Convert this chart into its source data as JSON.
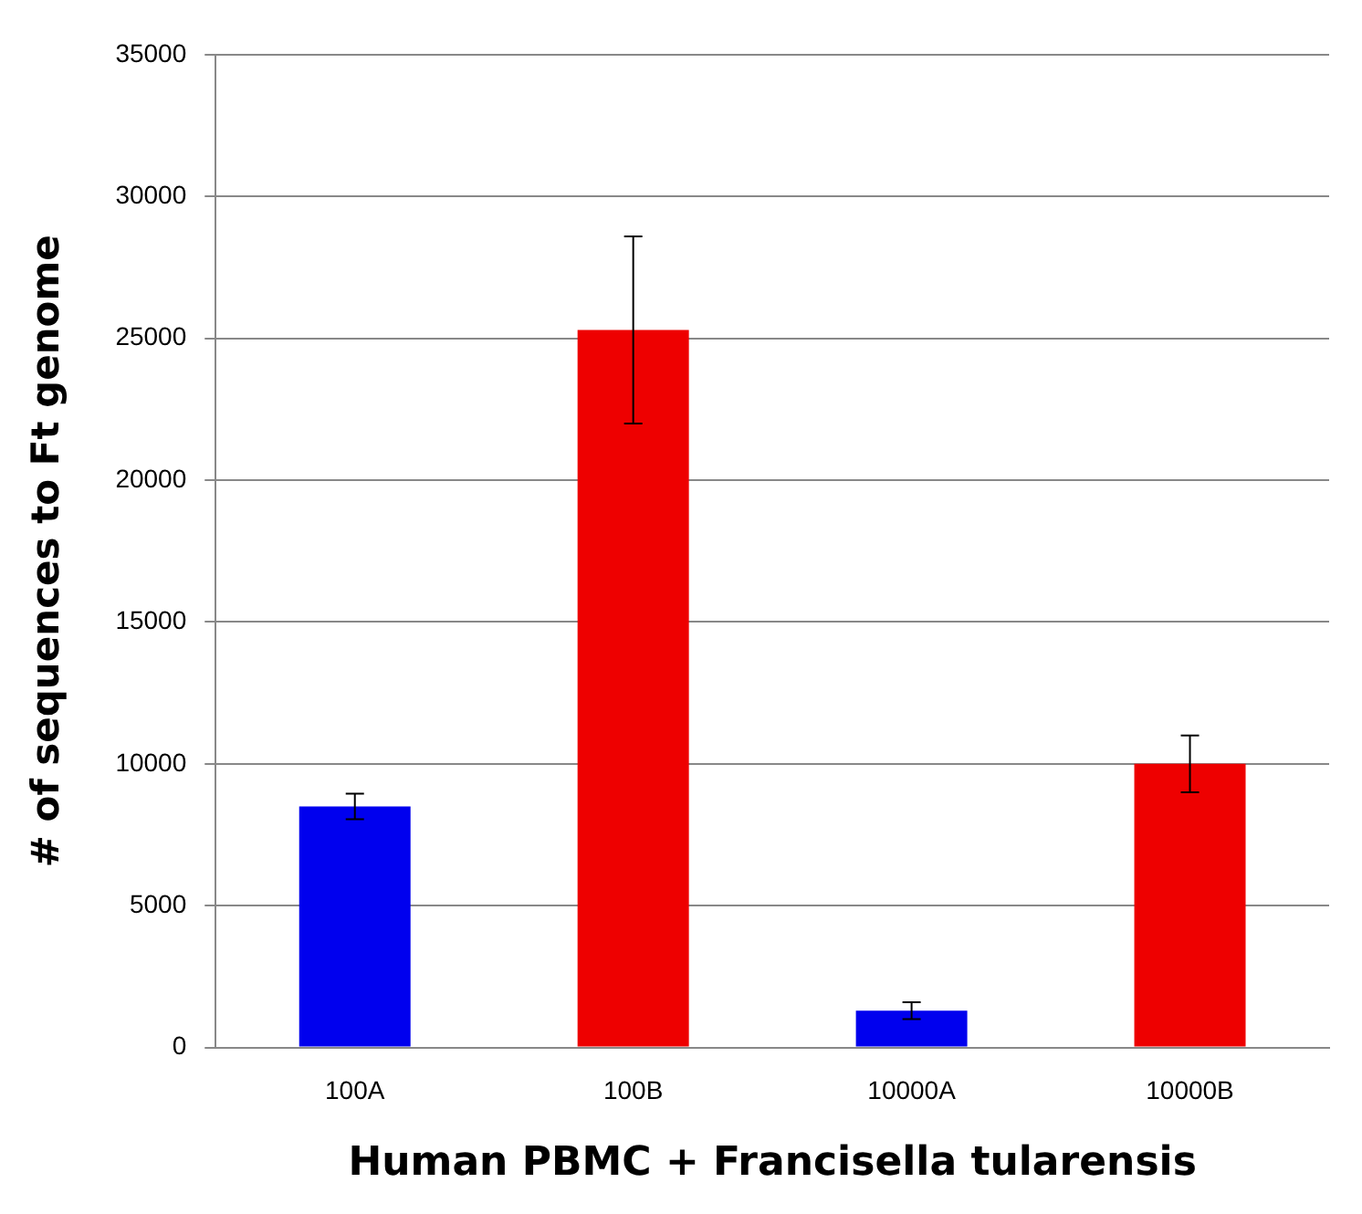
{
  "chart_data": {
    "type": "bar",
    "xlabel": "Human PBMC + Francisella tularensis",
    "ylabel": "# of sequences to Ft genome",
    "categories": [
      "100A",
      "100B",
      "10000A",
      "10000B"
    ],
    "values": [
      8500,
      25300,
      1300,
      10000
    ],
    "errors": [
      450,
      3300,
      300,
      1000
    ],
    "colors": [
      "#0000ee",
      "#ee0000",
      "#0000ee",
      "#ee0000"
    ],
    "ylim": [
      0,
      35000
    ],
    "yticks": [
      0,
      5000,
      10000,
      15000,
      20000,
      25000,
      30000,
      35000
    ],
    "grid": "y",
    "legend": false
  }
}
